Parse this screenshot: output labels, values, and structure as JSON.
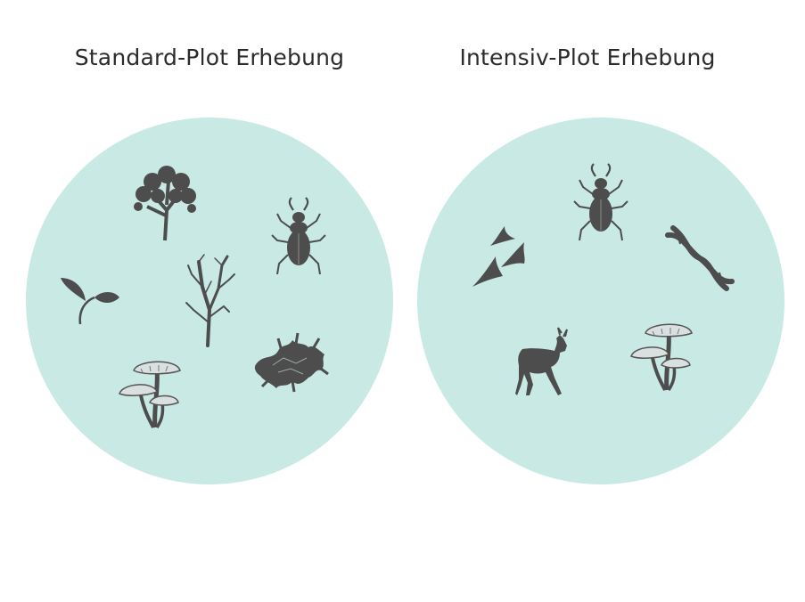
{
  "panels": [
    {
      "title": "Standard-Plot Erhebung",
      "circle_color": "#c8e9e4",
      "icons": [
        "tree-icon",
        "beetle-icon",
        "seedling-icon",
        "shrub-icon",
        "lichen-icon",
        "mushrooms-icon"
      ]
    },
    {
      "title": "Intensiv-Plot Erhebung",
      "circle_color": "#c8e9e4",
      "icons": [
        "beetle-icon",
        "birds-icon",
        "dna-icon",
        "deer-icon",
        "mushrooms-icon"
      ]
    }
  ],
  "icon_color": "#4d4d4d"
}
